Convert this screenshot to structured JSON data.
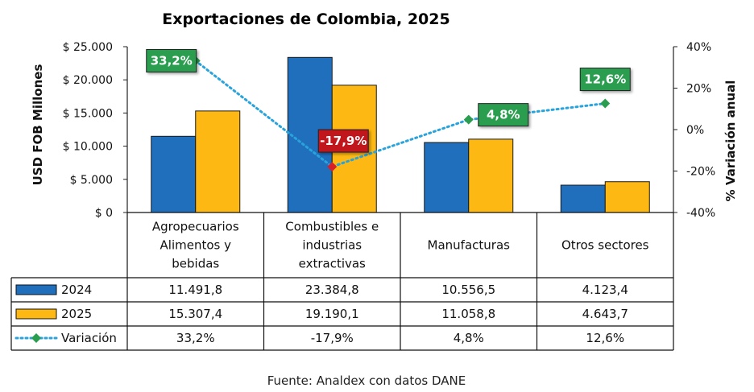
{
  "chart_data": {
    "type": "bar",
    "title": "Exportaciones de Colombia, 2025",
    "ylabel": "USD FOB Millones",
    "y2label": "% Variación anual",
    "ylim": [
      0,
      25000
    ],
    "y2lim": [
      -40,
      40
    ],
    "yticks": [
      0,
      5000,
      10000,
      15000,
      20000,
      25000
    ],
    "ytick_labels": [
      "$ 0",
      "$ 5.000",
      "$ 10.000",
      "$ 15.000",
      "$ 20.000",
      "$ 25.000"
    ],
    "y2ticks": [
      -40,
      -20,
      0,
      20,
      40
    ],
    "y2tick_labels": [
      "-40%",
      "-20%",
      "0%",
      "20%",
      "40%"
    ],
    "categories": [
      [
        "Agropecuarios",
        "Alimentos y",
        "bebidas"
      ],
      [
        "Combustibles e",
        "industrias",
        "extractivas"
      ],
      [
        "Manufacturas"
      ],
      [
        "Otros sectores"
      ]
    ],
    "series": [
      {
        "name": "2024",
        "kind": "bar",
        "color": "#1f6fbd",
        "values": [
          11491.8,
          23384.8,
          10556.5,
          4123.4
        ],
        "labels": [
          "11.491,8",
          "23.384,8",
          "10.556,5",
          "4.123,4"
        ]
      },
      {
        "name": "2025",
        "kind": "bar",
        "color": "#fdb813",
        "values": [
          15307.4,
          19190.1,
          11058.8,
          4643.7
        ],
        "labels": [
          "15.307,4",
          "19.190,1",
          "11.058,8",
          "4.643,7"
        ]
      },
      {
        "name": "Variación",
        "kind": "line",
        "axis": "right",
        "color": "#29a3dc",
        "values": [
          33.2,
          -17.9,
          4.8,
          12.6
        ],
        "labels": [
          "33,2%",
          "-17,9%",
          "4,8%",
          "12,6%"
        ]
      }
    ],
    "annotations": [
      {
        "text": "33,2%",
        "color": "#2a9d4f"
      },
      {
        "text": "-17,9%",
        "color": "#c0141c"
      },
      {
        "text": "4,8%",
        "color": "#2a9d4f"
      },
      {
        "text": "12,6%",
        "color": "#2a9d4f"
      }
    ],
    "marker_colors": {
      "positive": "#2a9d4f",
      "negative": "#d81e28"
    }
  },
  "source": "Fuente: Analdex con datos DANE"
}
